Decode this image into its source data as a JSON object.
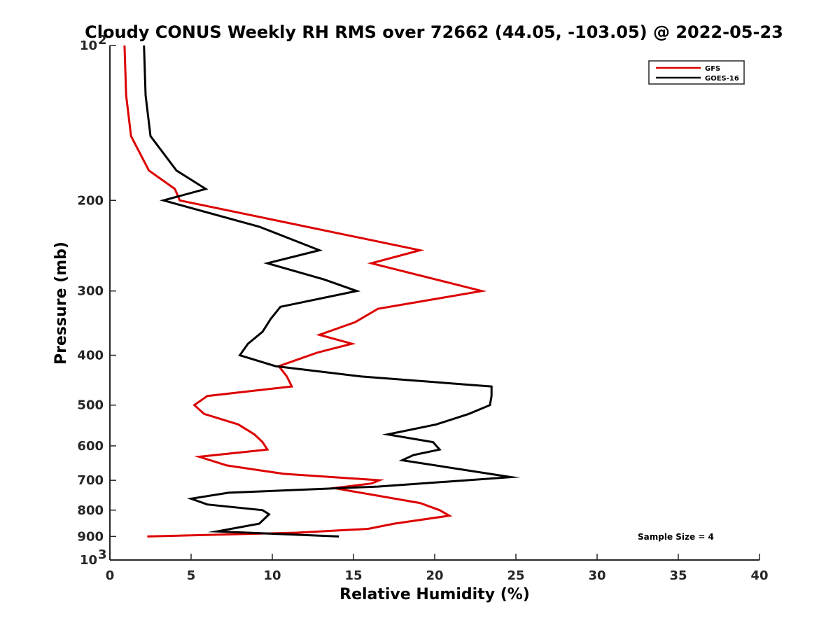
{
  "chart_data": {
    "type": "line",
    "title": "Cloudy CONUS Weekly RH RMS over 72662 (44.05, -103.05) @ 2022-05-23",
    "xlabel": "Relative Humidity (%)",
    "ylabel": "Pressure (mb)",
    "xlim": [
      0,
      40
    ],
    "ylim": [
      100,
      1000
    ],
    "y_scale": "log",
    "y_reversed": true,
    "grid": false,
    "legend_position": "top-right",
    "x_ticks": [
      "0",
      "5",
      "10",
      "15",
      "20",
      "25",
      "30",
      "35",
      "40"
    ],
    "y_ticks": [
      {
        "value": 100,
        "label": "10",
        "sup": "2"
      },
      {
        "value": 200,
        "label": "200"
      },
      {
        "value": 300,
        "label": "300"
      },
      {
        "value": 400,
        "label": "400"
      },
      {
        "value": 500,
        "label": "500"
      },
      {
        "value": 600,
        "label": "600"
      },
      {
        "value": 700,
        "label": "700"
      },
      {
        "value": 800,
        "label": "800"
      },
      {
        "value": 900,
        "label": "900"
      },
      {
        "value": 1000,
        "label": "10",
        "sup": "3"
      }
    ],
    "series": [
      {
        "name": "GFS",
        "color": "#dd0000",
        "points": [
          [
            0.9,
            100
          ],
          [
            1.0,
            125
          ],
          [
            1.3,
            150
          ],
          [
            2.4,
            175
          ],
          [
            4.0,
            190
          ],
          [
            4.3,
            200
          ],
          [
            19.1,
            250
          ],
          [
            16.1,
            265
          ],
          [
            22.9,
            300
          ],
          [
            16.5,
            325
          ],
          [
            15.1,
            345
          ],
          [
            12.9,
            365
          ],
          [
            14.9,
            380
          ],
          [
            12.8,
            395
          ],
          [
            10.4,
            420
          ],
          [
            10.9,
            440
          ],
          [
            11.2,
            460
          ],
          [
            6.0,
            480
          ],
          [
            5.2,
            500
          ],
          [
            5.8,
            520
          ],
          [
            7.9,
            545
          ],
          [
            8.9,
            570
          ],
          [
            9.4,
            590
          ],
          [
            9.7,
            610
          ],
          [
            5.5,
            630
          ],
          [
            7.2,
            655
          ],
          [
            10.7,
            680
          ],
          [
            16.6,
            700
          ],
          [
            16.1,
            710
          ],
          [
            13.8,
            725
          ],
          [
            19.1,
            775
          ],
          [
            20.3,
            800
          ],
          [
            20.9,
            820
          ],
          [
            17.5,
            850
          ],
          [
            15.9,
            870
          ],
          [
            11.5,
            885
          ],
          [
            2.3,
            900
          ]
        ]
      },
      {
        "name": "GOES-16",
        "color": "#000000",
        "points": [
          [
            2.1,
            100
          ],
          [
            2.2,
            125
          ],
          [
            2.5,
            150
          ],
          [
            4.1,
            175
          ],
          [
            5.9,
            190
          ],
          [
            3.3,
            200
          ],
          [
            9.2,
            225
          ],
          [
            12.9,
            250
          ],
          [
            9.7,
            265
          ],
          [
            13.2,
            285
          ],
          [
            15.2,
            300
          ],
          [
            10.5,
            322
          ],
          [
            9.9,
            340
          ],
          [
            9.4,
            360
          ],
          [
            8.5,
            380
          ],
          [
            8.0,
            400
          ],
          [
            10.2,
            420
          ],
          [
            15.5,
            440
          ],
          [
            23.5,
            460
          ],
          [
            23.5,
            480
          ],
          [
            23.4,
            500
          ],
          [
            22.1,
            520
          ],
          [
            20.1,
            545
          ],
          [
            17.1,
            570
          ],
          [
            19.9,
            590
          ],
          [
            20.3,
            610
          ],
          [
            18.7,
            625
          ],
          [
            18.0,
            640
          ],
          [
            24.7,
            690
          ],
          [
            16.5,
            720
          ],
          [
            7.3,
            740
          ],
          [
            5.0,
            760
          ],
          [
            6.0,
            780
          ],
          [
            9.4,
            800
          ],
          [
            9.8,
            815
          ],
          [
            9.2,
            850
          ],
          [
            6.6,
            880
          ],
          [
            14.1,
            900
          ]
        ]
      }
    ],
    "annotation": "Sample Size = 4"
  }
}
